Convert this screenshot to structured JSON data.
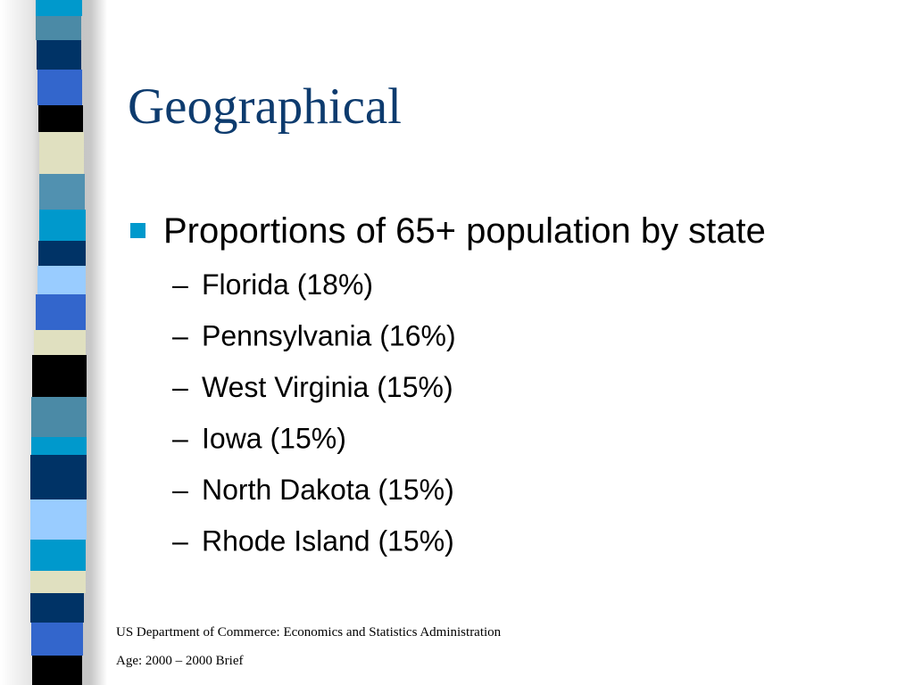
{
  "slide": {
    "title": "Geographical",
    "bullet": "Proportions of 65+ population by state",
    "sub_marker": "–",
    "sub_items": [
      "Florida (18%)",
      "Pennsylvania (16%)",
      "West Virginia (15%)",
      "Iowa (15%)",
      "North Dakota (15%)",
      "Rhode Island (15%)"
    ],
    "footer": [
      "US Department of Commerce: Economics and Statistics Administration",
      "Age: 2000 – 2000 Brief"
    ]
  }
}
